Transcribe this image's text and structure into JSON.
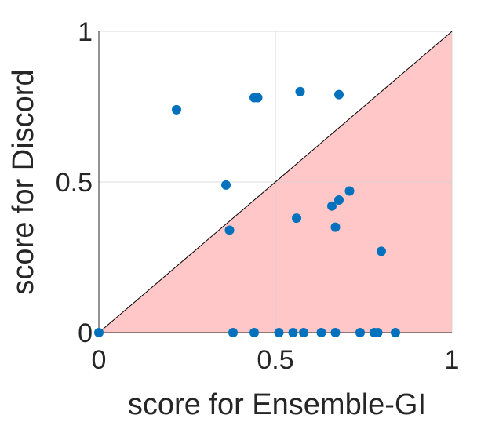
{
  "chart_data": {
    "type": "scatter",
    "xlabel": "score for Ensemble-GI",
    "ylabel": "score for Discord",
    "xlim": [
      0,
      1
    ],
    "ylim": [
      0,
      1
    ],
    "grid": true,
    "xticks": [
      0,
      0.5,
      1
    ],
    "yticks": [
      0,
      0.5,
      1
    ],
    "xtick_labels": [
      "0",
      "0.5",
      "1"
    ],
    "ytick_labels": [
      "0",
      "0.5",
      "1"
    ],
    "diagonal_line": true,
    "shaded_region": "below-diagonal",
    "colors": {
      "points": "#0072BD",
      "shade": "#FFC7C7",
      "diagonal": "#000000"
    },
    "points": [
      {
        "x": 0.0,
        "y": 0.0
      },
      {
        "x": 0.22,
        "y": 0.74
      },
      {
        "x": 0.44,
        "y": 0.78
      },
      {
        "x": 0.45,
        "y": 0.78
      },
      {
        "x": 0.57,
        "y": 0.8
      },
      {
        "x": 0.68,
        "y": 0.79
      },
      {
        "x": 0.36,
        "y": 0.49
      },
      {
        "x": 0.37,
        "y": 0.34
      },
      {
        "x": 0.56,
        "y": 0.38
      },
      {
        "x": 0.66,
        "y": 0.42
      },
      {
        "x": 0.68,
        "y": 0.44
      },
      {
        "x": 0.71,
        "y": 0.47
      },
      {
        "x": 0.67,
        "y": 0.35
      },
      {
        "x": 0.8,
        "y": 0.27
      },
      {
        "x": 0.38,
        "y": 0.0
      },
      {
        "x": 0.44,
        "y": 0.0
      },
      {
        "x": 0.51,
        "y": 0.0
      },
      {
        "x": 0.55,
        "y": 0.0
      },
      {
        "x": 0.58,
        "y": 0.0
      },
      {
        "x": 0.63,
        "y": 0.0
      },
      {
        "x": 0.67,
        "y": 0.0
      },
      {
        "x": 0.74,
        "y": 0.0
      },
      {
        "x": 0.78,
        "y": 0.0
      },
      {
        "x": 0.79,
        "y": 0.0
      },
      {
        "x": 0.84,
        "y": 0.0
      }
    ]
  }
}
